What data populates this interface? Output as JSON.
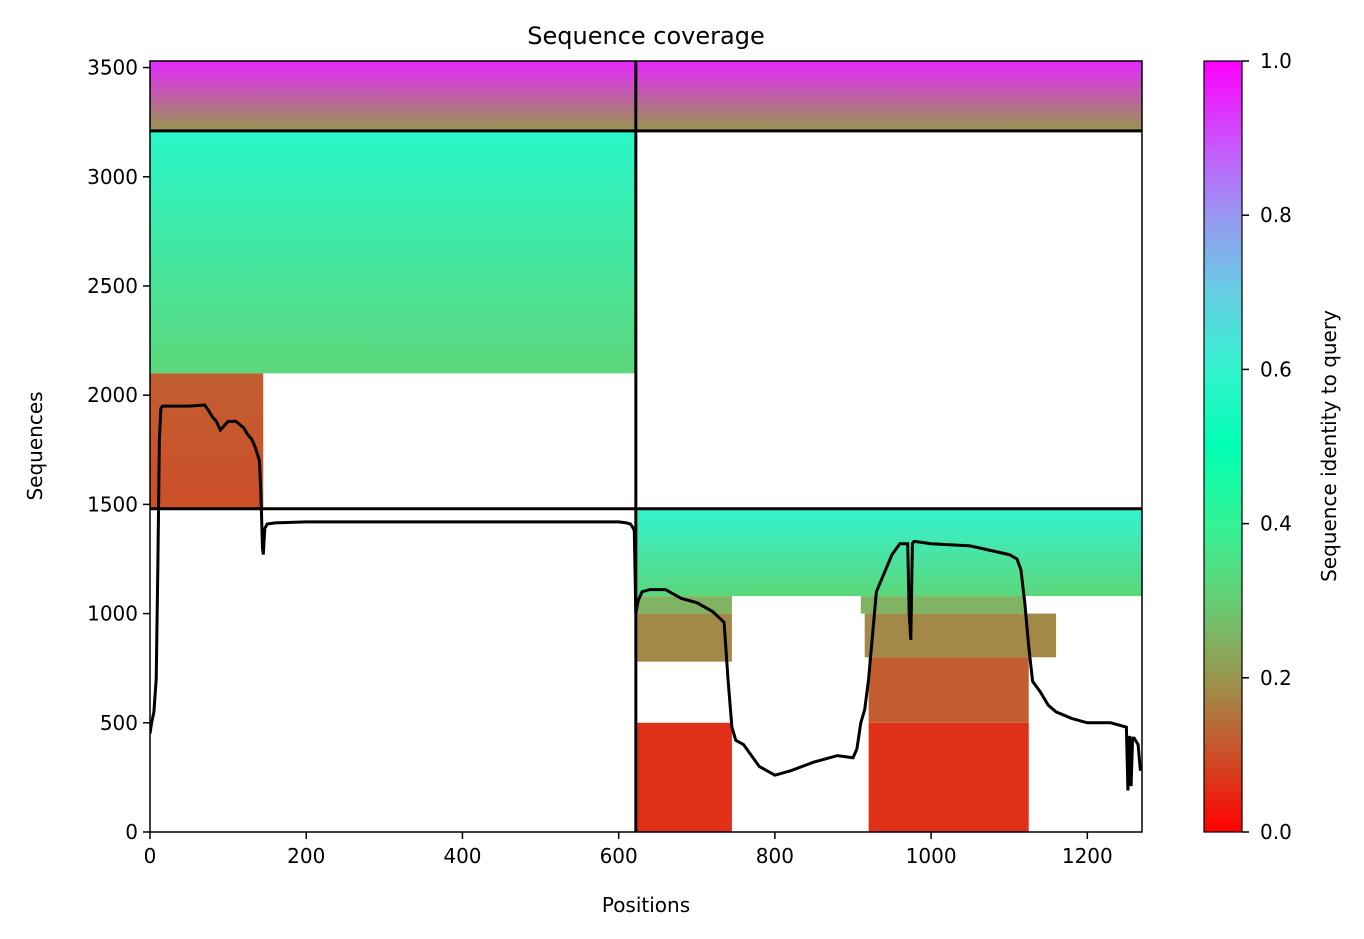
{
  "chart_data": {
    "type": "heatmap",
    "title": "Sequence coverage",
    "xlabel": "Positions",
    "ylabel": "Sequences",
    "xlim": [
      0,
      1270
    ],
    "ylim": [
      0,
      3530
    ],
    "xticks": [
      0,
      200,
      400,
      600,
      800,
      1000,
      1200
    ],
    "yticks": [
      0,
      500,
      1000,
      1500,
      2000,
      2500,
      3000,
      3500
    ],
    "colorbar": {
      "label": "Sequence identity to query",
      "range": [
        0,
        1
      ],
      "ticks": [
        "0.0",
        "0.2",
        "0.4",
        "0.6",
        "0.8",
        "1.0"
      ],
      "colormap": "rainbow_r"
    },
    "domain_boundaries": {
      "x": [
        622
      ],
      "y": [
        1480,
        3210
      ]
    },
    "coverage_blocks": [
      {
        "x": [
          0,
          622
        ],
        "y": [
          3210,
          3530
        ],
        "identity": [
          0.2,
          0.95
        ]
      },
      {
        "x": [
          622,
          1270
        ],
        "y": [
          3210,
          3530
        ],
        "identity": [
          0.2,
          0.95
        ]
      },
      {
        "x": [
          0,
          622
        ],
        "y": [
          2100,
          3210
        ],
        "identity": [
          0.32,
          0.58
        ]
      },
      {
        "x": [
          0,
          145
        ],
        "y": [
          1480,
          2100
        ],
        "identity": [
          0.1,
          0.12
        ]
      },
      {
        "x": [
          622,
          1270
        ],
        "y": [
          1480,
          1080
        ],
        "identity": [
          0.6,
          0.32
        ]
      },
      {
        "x": [
          622,
          745
        ],
        "y": [
          1080,
          1000
        ],
        "identity": [
          0.25,
          0.25
        ]
      },
      {
        "x": [
          910,
          1120
        ],
        "y": [
          1080,
          1000
        ],
        "identity": [
          0.25,
          0.25
        ]
      },
      {
        "x": [
          622,
          745
        ],
        "y": [
          1000,
          780
        ],
        "identity": [
          0.18,
          0.18
        ]
      },
      {
        "x": [
          915,
          1160
        ],
        "y": [
          1000,
          800
        ],
        "identity": [
          0.18,
          0.18
        ]
      },
      {
        "x": [
          920,
          1125
        ],
        "y": [
          800,
          500
        ],
        "identity": [
          0.12,
          0.12
        ]
      },
      {
        "x": [
          622,
          745
        ],
        "y": [
          500,
          0
        ],
        "identity": [
          0.06,
          0.06
        ]
      },
      {
        "x": [
          920,
          1125
        ],
        "y": [
          500,
          0
        ],
        "identity": [
          0.06,
          0.06
        ]
      }
    ],
    "coverage_line": {
      "x": [
        0,
        2,
        5,
        8,
        10,
        12,
        14,
        16,
        20,
        30,
        50,
        70,
        75,
        80,
        85,
        90,
        95,
        100,
        110,
        120,
        125,
        130,
        135,
        140,
        142,
        144,
        145,
        147,
        150,
        160,
        200,
        300,
        400,
        500,
        600,
        610,
        615,
        618,
        620,
        622,
        625,
        630,
        640,
        660,
        680,
        700,
        720,
        735,
        740,
        745,
        750,
        760,
        780,
        800,
        820,
        850,
        880,
        900,
        905,
        910,
        915,
        920,
        930,
        950,
        960,
        970,
        972,
        974,
        976,
        978,
        980,
        1000,
        1050,
        1100,
        1110,
        1115,
        1120,
        1125,
        1130,
        1140,
        1150,
        1160,
        1180,
        1200,
        1230,
        1250,
        1252,
        1254,
        1256,
        1258,
        1260,
        1265,
        1268
      ],
      "y": [
        450,
        500,
        550,
        700,
        1200,
        1800,
        1940,
        1950,
        1950,
        1950,
        1950,
        1955,
        1930,
        1900,
        1880,
        1840,
        1860,
        1880,
        1880,
        1850,
        1820,
        1800,
        1760,
        1700,
        1550,
        1300,
        1270,
        1390,
        1410,
        1415,
        1420,
        1420,
        1420,
        1420,
        1420,
        1415,
        1410,
        1395,
        1380,
        1000,
        1060,
        1100,
        1110,
        1110,
        1070,
        1050,
        1010,
        960,
        700,
        480,
        420,
        400,
        300,
        260,
        280,
        320,
        350,
        340,
        380,
        500,
        560,
        700,
        1100,
        1270,
        1320,
        1320,
        1000,
        880,
        1320,
        1330,
        1330,
        1320,
        1310,
        1270,
        1250,
        1200,
        1050,
        850,
        690,
        640,
        580,
        550,
        520,
        500,
        500,
        480,
        190,
        440,
        210,
        430,
        430,
        400,
        280
      ]
    }
  }
}
